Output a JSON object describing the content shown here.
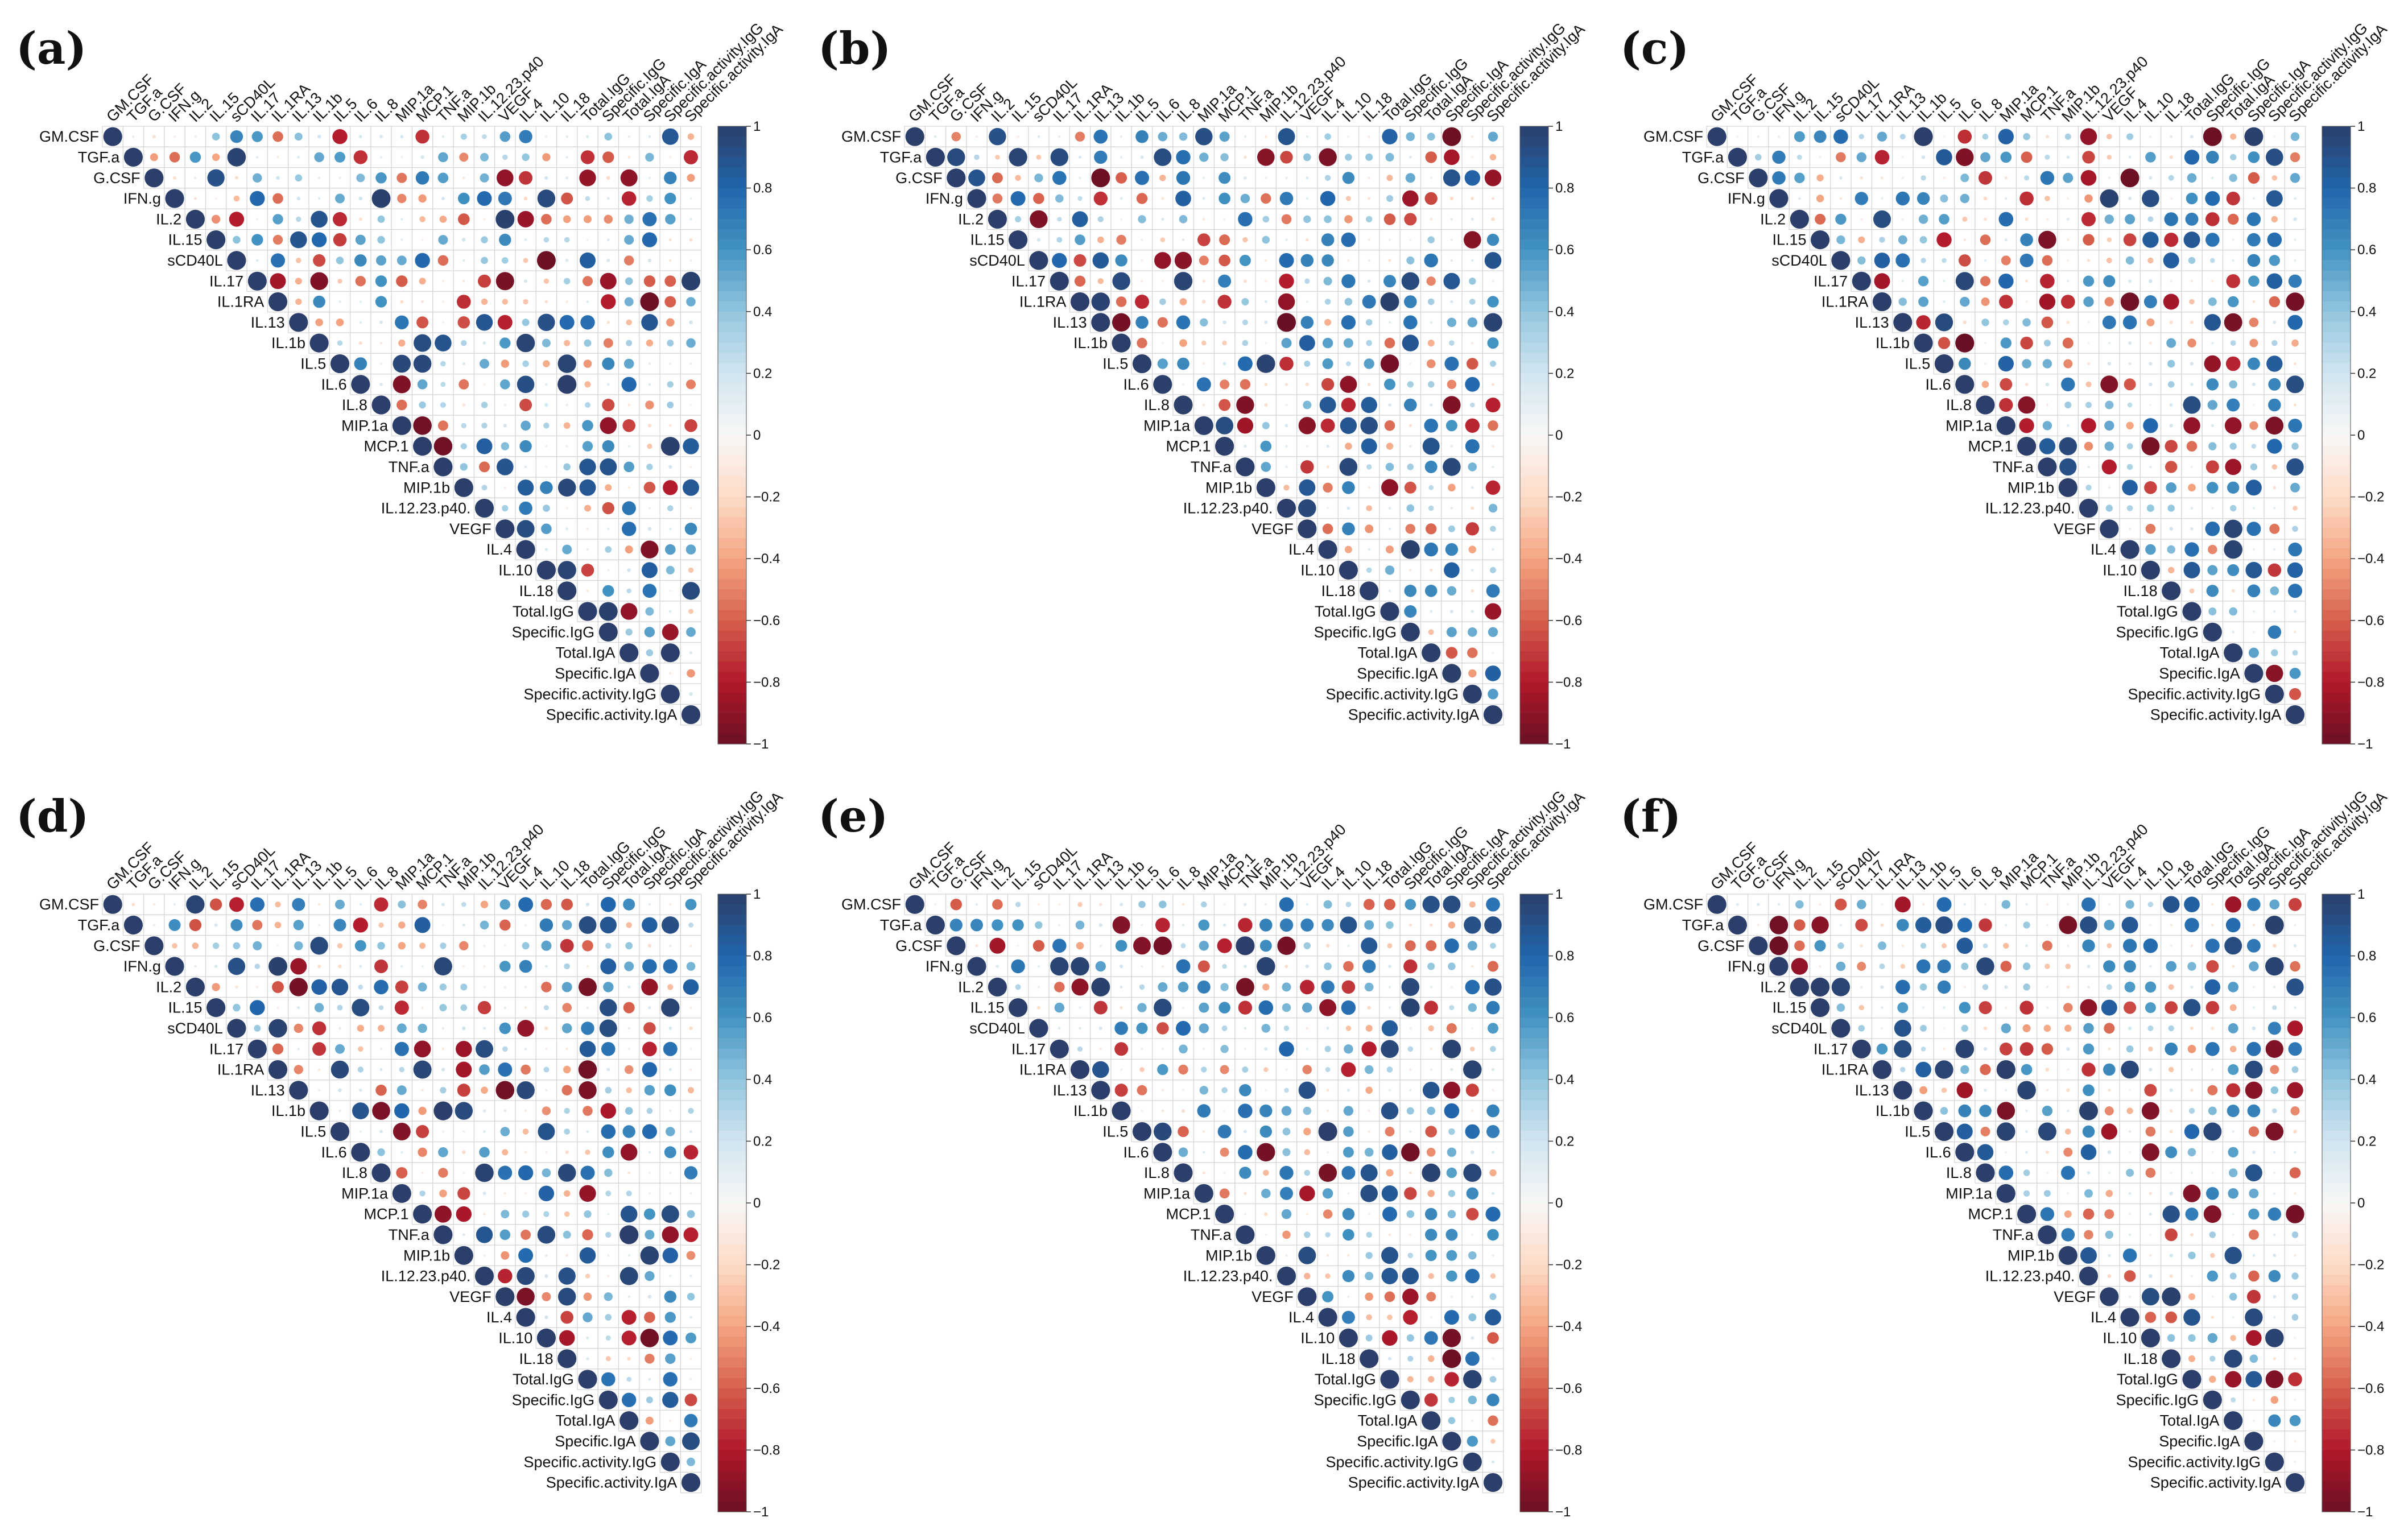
{
  "figure": {
    "variables": [
      "GM.CSF",
      "TGF.a",
      "G.CSF",
      "IFN.g",
      "IL.2",
      "IL.15",
      "sCD40L",
      "IL.17",
      "IL.1RA",
      "IL.13",
      "IL.1b",
      "IL.5",
      "IL.6",
      "IL.8",
      "MIP.1a",
      "MCP.1",
      "TNF.a",
      "MIP.1b",
      "IL.12.23.p40.",
      "VEGF",
      "IL.4",
      "IL.10",
      "IL.18",
      "Total.IgG",
      "Specific.IgG",
      "Total.IgA",
      "Specific.IgA",
      "Specific.activity.IgG",
      "Specific.activity.IgA"
    ],
    "top_labels": [
      "GM.CSF",
      "TGF.a",
      "G.CSF",
      "IFN.g",
      "IL.2",
      "IL.15",
      "sCD40L",
      "IL.17",
      "IL.1RA",
      "IL.13",
      "IL.1b",
      "IL.5",
      "IL.6",
      "IL.8",
      "MIP.1a",
      "MCP.1",
      "TNF.a",
      "MIP.1b",
      "IL.12.23.p40",
      "VEGF",
      "IL.4",
      "IL.10",
      "IL.18",
      "Total.IgG",
      "Specific.IgG",
      "Total.IgA",
      "Specific.IgA",
      "Specific.activity.IgG",
      "Specific.activity.IgA"
    ],
    "colorbar_ticks": [
      "1",
      "0.8",
      "0.6",
      "0.4",
      "0.2",
      "0",
      "−0.2",
      "−0.4",
      "−0.6",
      "−0.8",
      "−1"
    ],
    "colorbar_values": [
      1,
      0.8,
      0.6,
      0.4,
      0.2,
      0,
      -0.2,
      -0.4,
      -0.6,
      -0.8,
      -1
    ]
  },
  "colors": {
    "positive": "#2b3f6a",
    "negative": "#6a1024",
    "grid": "#d4d4d4"
  },
  "chart_data": [
    {
      "type": "heatmap",
      "subtype": "correlation-upper-triangle",
      "panel_label": "(a)",
      "seed": 11,
      "clim": [
        -1,
        1
      ]
    },
    {
      "type": "heatmap",
      "subtype": "correlation-upper-triangle",
      "panel_label": "(b)",
      "seed": 23,
      "clim": [
        -1,
        1
      ]
    },
    {
      "type": "heatmap",
      "subtype": "correlation-upper-triangle",
      "panel_label": "(c)",
      "seed": 37,
      "clim": [
        -1,
        1
      ]
    },
    {
      "type": "heatmap",
      "subtype": "correlation-upper-triangle",
      "panel_label": "(d)",
      "seed": 41,
      "clim": [
        -1,
        1
      ]
    },
    {
      "type": "heatmap",
      "subtype": "correlation-upper-triangle",
      "panel_label": "(e)",
      "seed": 53,
      "clim": [
        -1,
        1
      ]
    },
    {
      "type": "heatmap",
      "subtype": "correlation-upper-triangle",
      "panel_label": "(f)",
      "seed": 67,
      "clim": [
        -1,
        1
      ]
    }
  ]
}
